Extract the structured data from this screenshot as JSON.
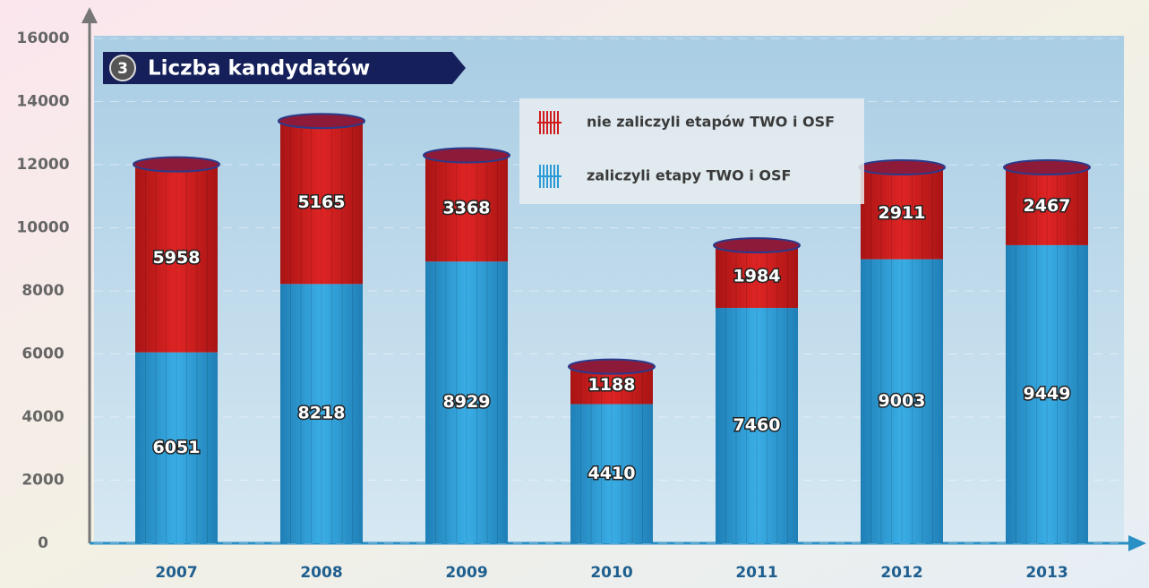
{
  "chart_data": {
    "type": "stacked-bar",
    "title": "Liczba kandydatów",
    "title_number": "3",
    "categories": [
      "2007",
      "2008",
      "2009",
      "2010",
      "2011",
      "2012",
      "2013"
    ],
    "series": [
      {
        "name": "zaliczyli etapy TWO i OSF",
        "color": "#2a9bd6",
        "values": [
          6051,
          8218,
          8929,
          4410,
          7460,
          9003,
          9449
        ]
      },
      {
        "name": "nie zaliczyli etapów TWO i OSF",
        "color": "#d01c1c",
        "values": [
          5958,
          5165,
          3368,
          1188,
          1984,
          2911,
          2467
        ]
      }
    ],
    "ylim": [
      0,
      16000
    ],
    "yticks": [
      0,
      2000,
      4000,
      6000,
      8000,
      10000,
      12000,
      14000,
      16000
    ],
    "grid": true
  }
}
